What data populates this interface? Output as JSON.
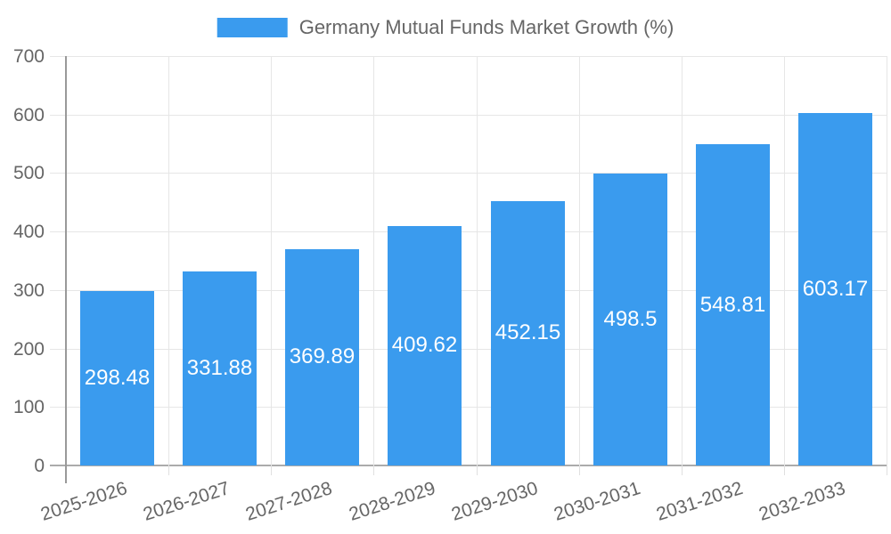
{
  "chart_data": {
    "type": "bar",
    "title": "Germany Mutual Funds Market Growth (%)",
    "categories": [
      "2025-2026",
      "2026-2027",
      "2027-2028",
      "2028-2029",
      "2029-2030",
      "2030-2031",
      "2031-2032",
      "2032-2033"
    ],
    "values": [
      298.48,
      331.88,
      369.89,
      409.62,
      452.15,
      498.5,
      548.81,
      603.17
    ],
    "value_labels": [
      "298.48",
      "331.88",
      "369.89",
      "409.62",
      "452.15",
      "498.5",
      "548.81",
      "603.17"
    ],
    "xlabel": "",
    "ylabel": "",
    "ylim": [
      0,
      700
    ],
    "ytick_step": 100,
    "ytick_labels": [
      "0",
      "100",
      "200",
      "300",
      "400",
      "500",
      "600",
      "700"
    ],
    "grid": true,
    "legend_position": "top-center",
    "value_label_position": "inside-center",
    "colors": {
      "bar": "#3a9bee",
      "grid": "#e6e6e6",
      "axis": "#999999",
      "tick_label": "#666666",
      "legend_label": "#666666",
      "value_label": "#ffffff",
      "background": "#ffffff"
    }
  }
}
